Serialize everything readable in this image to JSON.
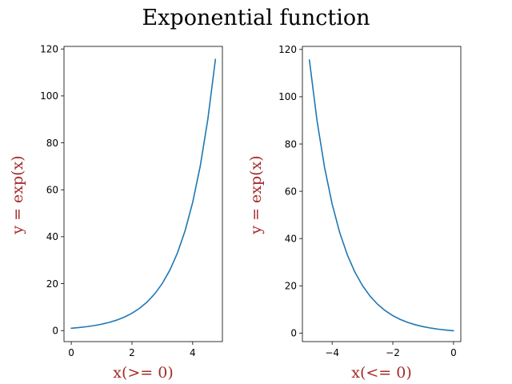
{
  "figure": {
    "title": "Exponential function"
  },
  "chart_data": [
    {
      "type": "line",
      "xlabel": "x(>= 0)",
      "ylabel": "y = exp(x)",
      "xlim": [
        -0.24,
        4.98
      ],
      "ylim": [
        -4.7,
        121.1
      ],
      "xticks": [
        0,
        2,
        4
      ],
      "xtick_labels": [
        "0",
        "2",
        "4"
      ],
      "yticks": [
        0,
        20,
        40,
        60,
        80,
        100,
        120
      ],
      "ytick_labels": [
        "0",
        "20",
        "40",
        "60",
        "80",
        "100",
        "120"
      ],
      "grid": false,
      "series": [
        {
          "color": "#1f77b4",
          "x": [
            0.0,
            0.25,
            0.5,
            0.75,
            1.0,
            1.25,
            1.5,
            1.75,
            2.0,
            2.25,
            2.5,
            2.75,
            3.0,
            3.25,
            3.5,
            3.75,
            4.0,
            4.25,
            4.5,
            4.75
          ],
          "y": [
            1.0,
            1.28,
            1.65,
            2.12,
            2.72,
            3.49,
            4.48,
            5.75,
            7.39,
            9.49,
            12.18,
            15.64,
            20.09,
            25.79,
            33.12,
            42.52,
            54.6,
            70.11,
            90.02,
            115.58
          ]
        }
      ]
    },
    {
      "type": "line",
      "xlabel": "x(<= 0)",
      "ylabel": "y = exp(x)",
      "xlim": [
        -4.98,
        0.24
      ],
      "ylim": [
        -3.6,
        121.3
      ],
      "xticks": [
        -4,
        -2,
        0
      ],
      "xtick_labels": [
        "−4",
        "−2",
        "0"
      ],
      "yticks": [
        0,
        20,
        40,
        60,
        80,
        100,
        120
      ],
      "ytick_labels": [
        "0",
        "20",
        "40",
        "60",
        "80",
        "100",
        "120"
      ],
      "grid": false,
      "series": [
        {
          "color": "#1f77b4",
          "x": [
            -4.75,
            -4.5,
            -4.25,
            -4.0,
            -3.75,
            -3.5,
            -3.25,
            -3.0,
            -2.75,
            -2.5,
            -2.25,
            -2.0,
            -1.75,
            -1.5,
            -1.25,
            -1.0,
            -0.75,
            -0.5,
            -0.25,
            0.0
          ],
          "y": [
            115.58,
            90.02,
            70.11,
            54.6,
            42.52,
            33.12,
            25.79,
            20.09,
            15.64,
            12.18,
            9.49,
            7.39,
            5.75,
            4.48,
            3.49,
            2.72,
            2.12,
            1.65,
            1.28,
            1.0
          ]
        }
      ]
    }
  ]
}
